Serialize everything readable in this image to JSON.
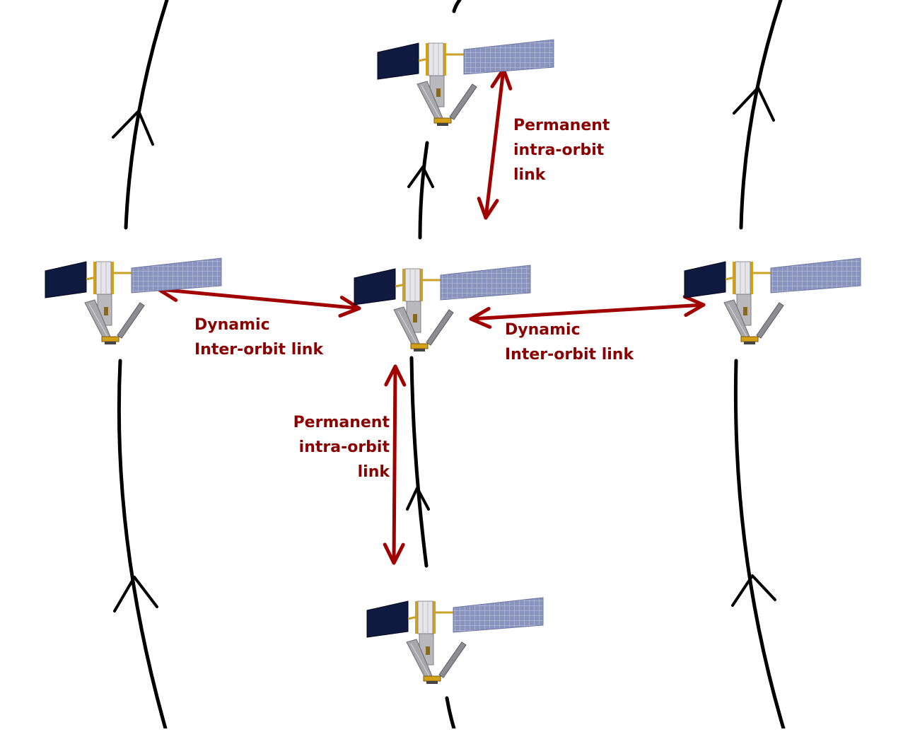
{
  "colors": {
    "background": "#ffffff",
    "orbit": "#000000",
    "link_arrow": "#a00000",
    "label_text": "#8b0000",
    "panel_dark": "#101a40",
    "panel_grid": "#9aa2c8",
    "bus_light": "#e6e6ea",
    "bus_gray": "#b9b9bd",
    "gold": "#d4a017"
  },
  "satellites": [
    "satellite-top",
    "satellite-left",
    "satellite-center",
    "satellite-right",
    "satellite-bottom"
  ],
  "links": {
    "permanent_upper": {
      "lines": [
        "Permanent",
        "intra-orbit",
        "link"
      ]
    },
    "dynamic_left": {
      "lines": [
        "Dynamic",
        "Inter-orbit link"
      ]
    },
    "dynamic_right": {
      "lines": [
        "Dynamic",
        "Inter-orbit link"
      ]
    },
    "permanent_lower": {
      "lines": [
        "Permanent",
        "intra-orbit",
        "link"
      ]
    }
  }
}
